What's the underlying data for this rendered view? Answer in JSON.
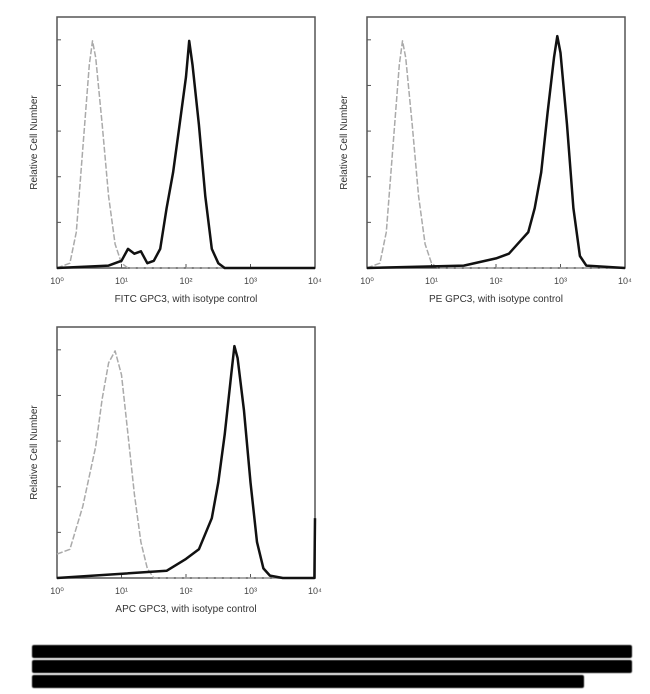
{
  "chart_data": [
    {
      "type": "line",
      "xlabel": "FITC GPC3, with isotype control",
      "ylabel": "Relative Cell Number",
      "x_scale": "log",
      "xticks": [
        "10⁰",
        "10¹",
        "10²",
        "10³",
        "10⁴"
      ],
      "xlim_decades": [
        0,
        4
      ],
      "ylim": [
        0,
        105
      ],
      "series": [
        {
          "style": "dashed-gray",
          "color": "#aaaaaa",
          "x": [
            0,
            0.2,
            0.3,
            0.4,
            0.5,
            0.55,
            0.6,
            0.7,
            0.8,
            0.9,
            1.0,
            1.1,
            4
          ],
          "y": [
            0,
            2,
            15,
            50,
            85,
            95,
            88,
            60,
            30,
            10,
            2,
            0,
            0
          ]
        },
        {
          "style": "solid-black",
          "color": "#111111",
          "x": [
            0,
            0.8,
            1.0,
            1.1,
            1.2,
            1.3,
            1.4,
            1.5,
            1.6,
            1.7,
            1.8,
            1.9,
            2.0,
            2.05,
            2.1,
            2.2,
            2.3,
            2.4,
            2.5,
            2.6,
            4
          ],
          "y": [
            0,
            1,
            3,
            8,
            6,
            7,
            2,
            3,
            8,
            25,
            40,
            60,
            80,
            95,
            85,
            60,
            30,
            8,
            2,
            0,
            0
          ]
        }
      ]
    },
    {
      "type": "line",
      "xlabel": "PE GPC3, with isotype control",
      "ylabel": "Relative Cell Number",
      "x_scale": "log",
      "xticks": [
        "10⁰",
        "10¹",
        "10²",
        "10³",
        "10⁴"
      ],
      "xlim_decades": [
        0,
        4
      ],
      "ylim": [
        0,
        105
      ],
      "series": [
        {
          "style": "dashed-gray",
          "color": "#aaaaaa",
          "x": [
            0,
            0.2,
            0.3,
            0.4,
            0.5,
            0.55,
            0.6,
            0.7,
            0.8,
            0.9,
            1.0,
            1.1,
            4
          ],
          "y": [
            0,
            2,
            15,
            50,
            85,
            95,
            88,
            60,
            30,
            10,
            2,
            0,
            0
          ]
        },
        {
          "style": "solid-black",
          "color": "#111111",
          "x": [
            0,
            1.5,
            2.0,
            2.2,
            2.4,
            2.5,
            2.6,
            2.7,
            2.8,
            2.9,
            2.95,
            3.0,
            3.1,
            3.2,
            3.3,
            3.4,
            4
          ],
          "y": [
            0,
            1,
            4,
            6,
            12,
            15,
            25,
            40,
            65,
            88,
            97,
            90,
            60,
            25,
            5,
            1,
            0
          ]
        }
      ]
    },
    {
      "type": "line",
      "xlabel": "APC GPC3, with isotype control",
      "ylabel": "Relative Cell Number",
      "x_scale": "log",
      "xticks": [
        "10⁰",
        "10¹",
        "10²",
        "10³",
        "10⁴"
      ],
      "xlim_decades": [
        0,
        4
      ],
      "ylim": [
        0,
        105
      ],
      "series": [
        {
          "style": "dashed-gray",
          "color": "#aaaaaa",
          "x": [
            0,
            0.2,
            0.4,
            0.6,
            0.7,
            0.8,
            0.9,
            1.0,
            1.1,
            1.2,
            1.3,
            1.4,
            1.5,
            4
          ],
          "y": [
            10,
            12,
            30,
            55,
            75,
            90,
            95,
            85,
            60,
            35,
            15,
            4,
            0,
            0
          ]
        },
        {
          "style": "solid-black",
          "color": "#111111",
          "x": [
            0,
            1.7,
            2.0,
            2.2,
            2.4,
            2.5,
            2.6,
            2.7,
            2.75,
            2.8,
            2.9,
            3.0,
            3.1,
            3.2,
            3.3,
            3.5,
            3.99,
            4
          ],
          "y": [
            0,
            3,
            8,
            12,
            25,
            40,
            60,
            85,
            97,
            92,
            70,
            40,
            15,
            4,
            1,
            0,
            0,
            25
          ]
        }
      ]
    }
  ]
}
